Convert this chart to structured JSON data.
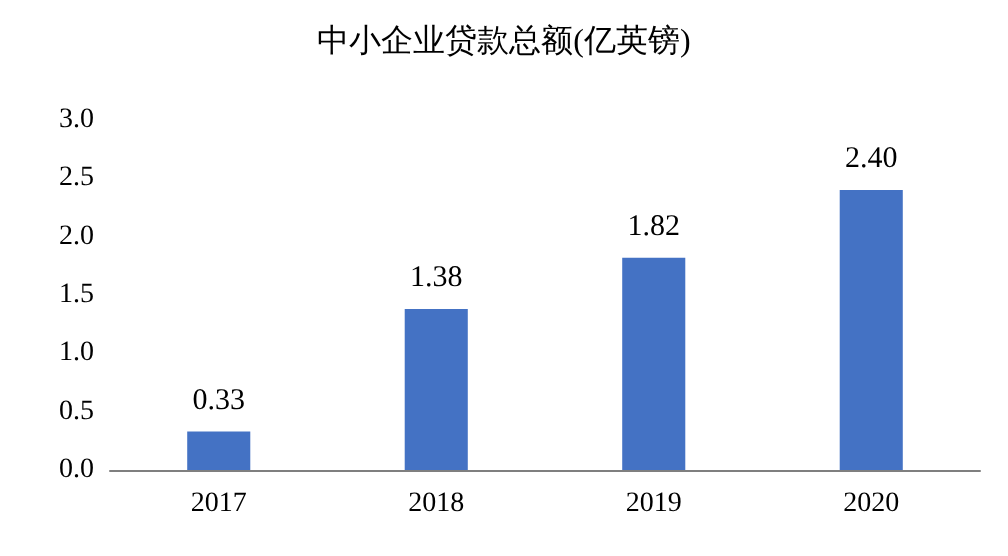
{
  "chart_data": {
    "type": "bar",
    "title": "中小企业贷款总额(亿英镑)",
    "categories": [
      "2017",
      "2018",
      "2019",
      "2020"
    ],
    "values": [
      0.33,
      1.38,
      1.82,
      2.4
    ],
    "value_labels": [
      "0.33",
      "1.38",
      "1.82",
      "2.40"
    ],
    "color": "#4472c4",
    "ylim": [
      0,
      3
    ],
    "yticks": [
      {
        "value": 0,
        "label": "0.0"
      },
      {
        "value": 0.5,
        "label": "0.5"
      },
      {
        "value": 1,
        "label": "1.0"
      },
      {
        "value": 1.5,
        "label": "1.5"
      },
      {
        "value": 2,
        "label": "2.0"
      },
      {
        "value": 2.5,
        "label": "2.5"
      },
      {
        "value": 3,
        "label": "3.0"
      }
    ],
    "grid": false
  }
}
